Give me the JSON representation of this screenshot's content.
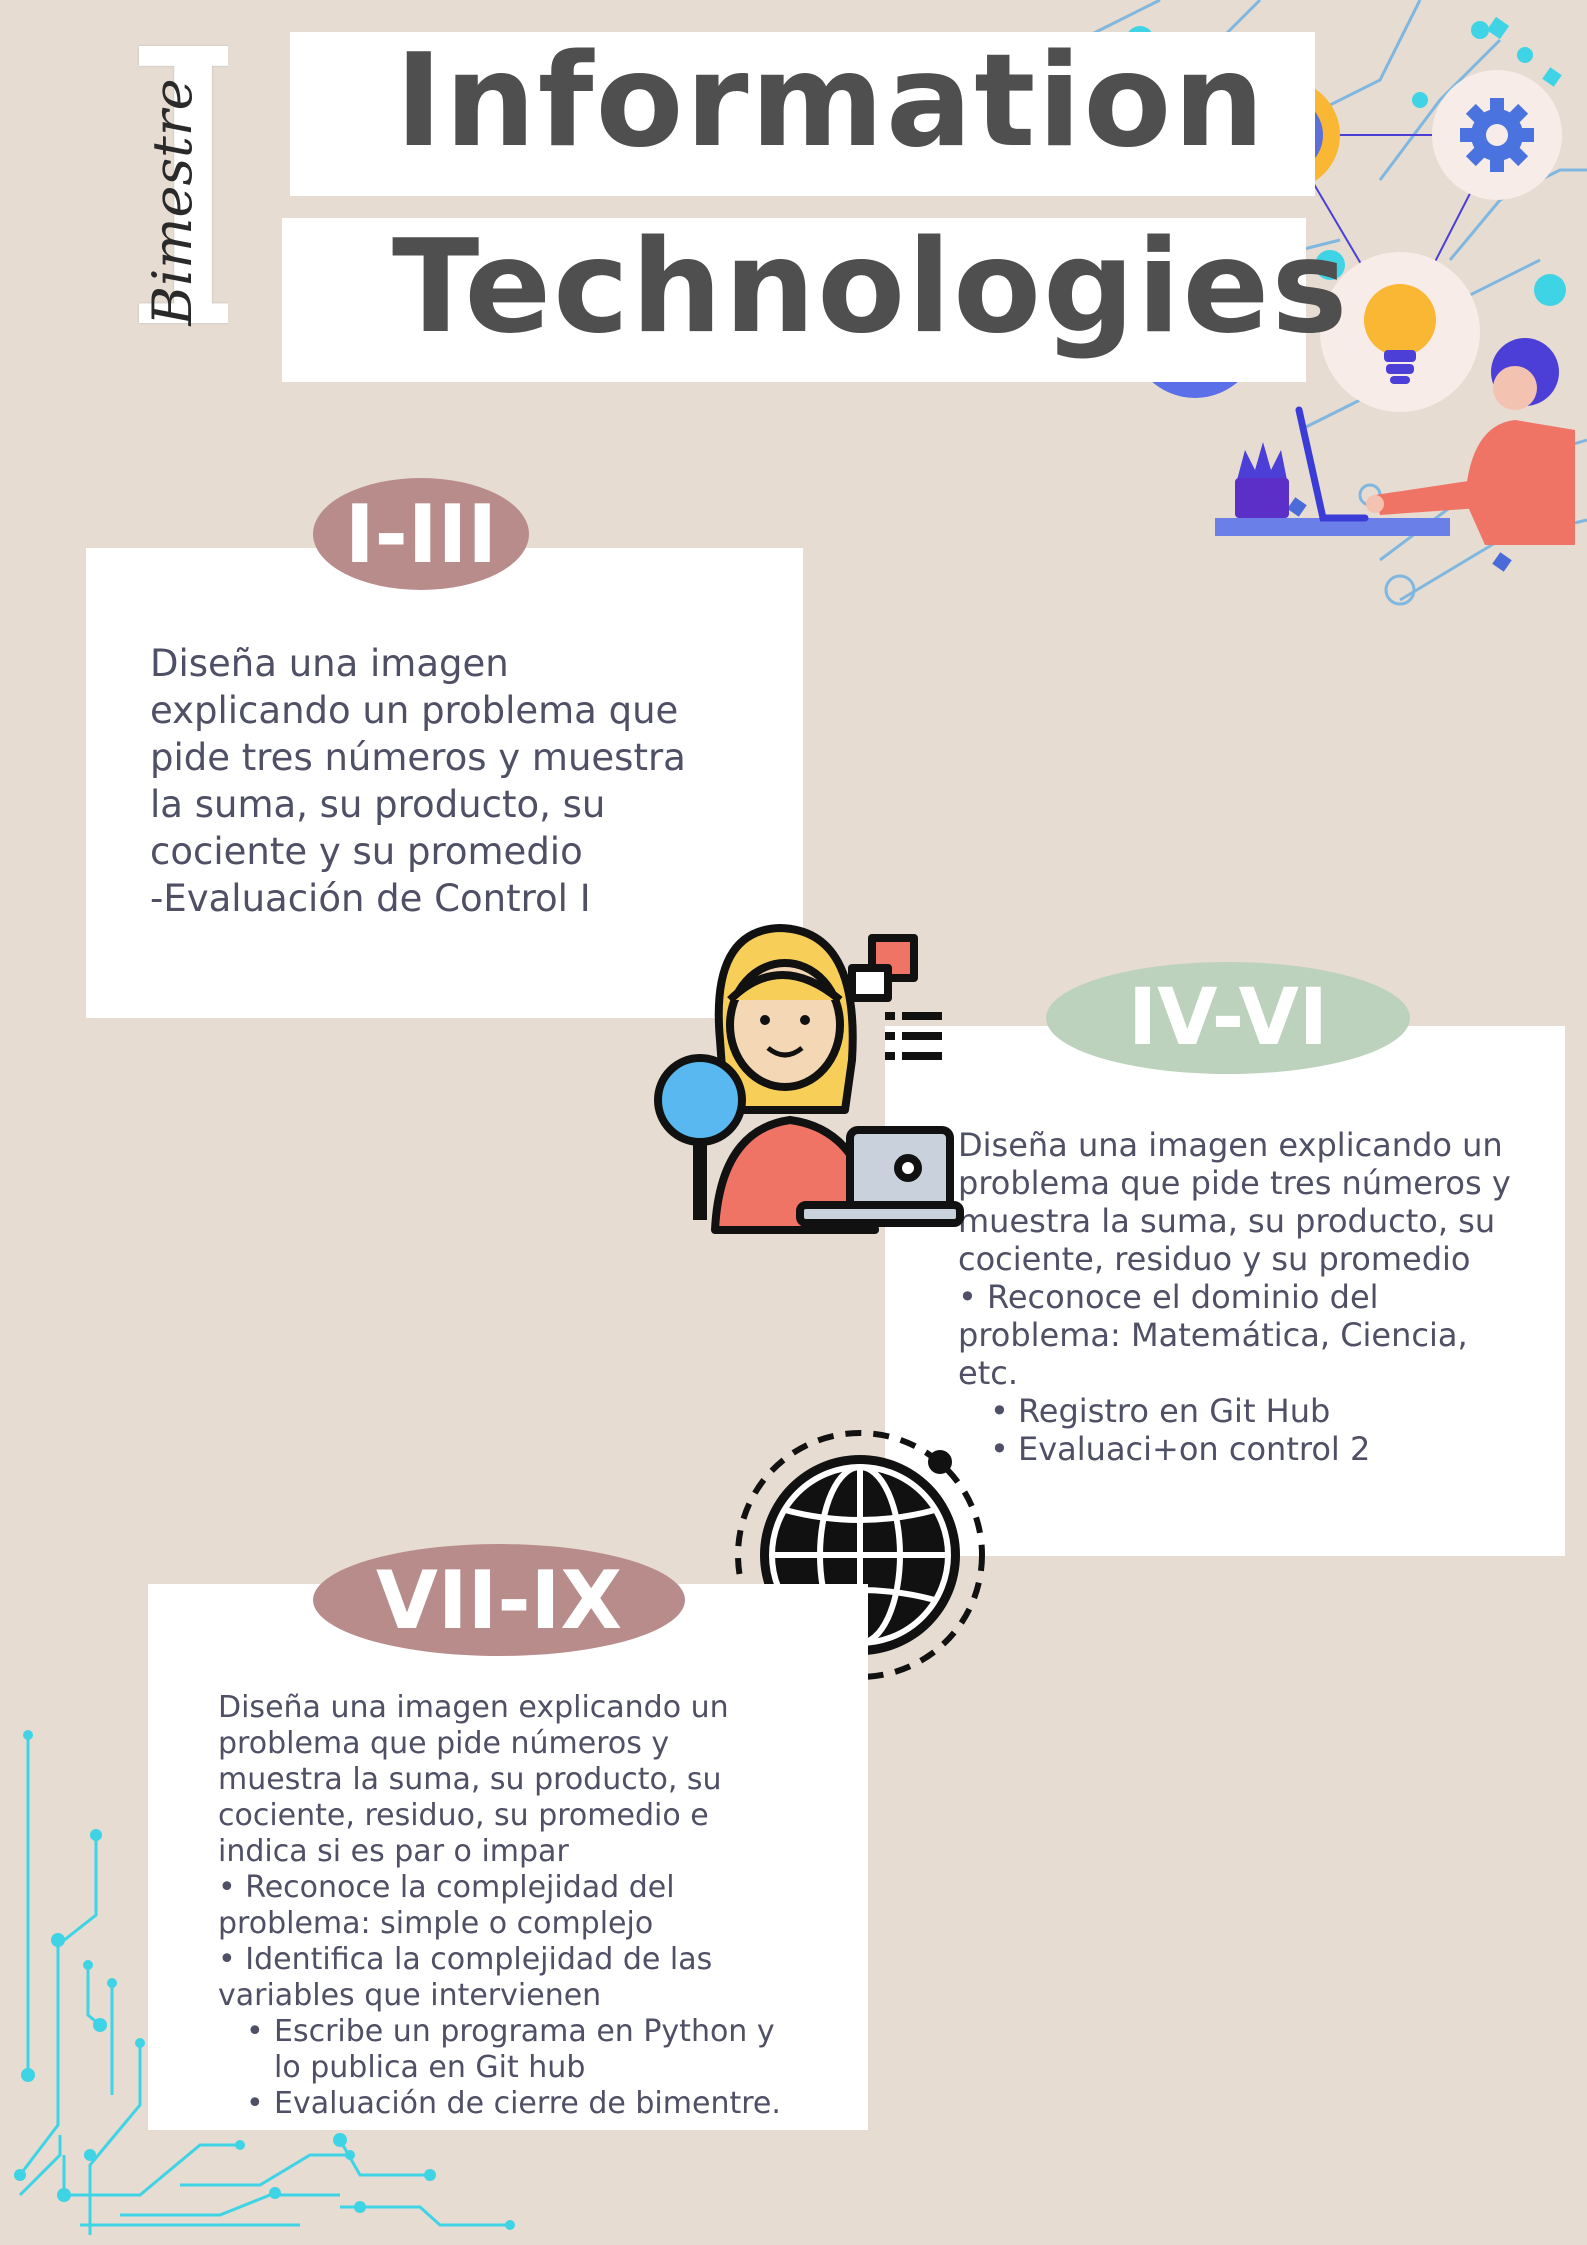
{
  "sidebar_label": {
    "numeral": "I",
    "script": "Bimestre"
  },
  "header": {
    "line1": "Information",
    "line2": "Technologies"
  },
  "sections": [
    {
      "badge": "I-III",
      "badge_color": "#b98c8c",
      "lines": [
        "Diseña una imagen",
        "explicando un problema que",
        "pide tres números y muestra",
        "la suma, su producto, su",
        "cociente y su promedio",
        "-Evaluación de Control I"
      ]
    },
    {
      "badge": "IV-VI",
      "badge_color": "#bcd2bc",
      "lines": [
        "Diseña una imagen explicando un",
        "problema que pide tres números y",
        "muestra la suma, su producto, su",
        "cociente, residuo y su promedio",
        "• Reconoce el dominio del",
        "problema: Matemática, Ciencia,",
        "etc."
      ],
      "bullets": [
        "Registro en Git Hub",
        "Evaluaci+on control 2"
      ]
    },
    {
      "badge": "VII-IX",
      "badge_color": "#b98c8c",
      "lines": [
        "Diseña una imagen explicando un",
        "problema que pide números y",
        "muestra la suma, su producto, su",
        "cociente, residuo, su promedio e",
        "indica si es par o impar",
        "• Reconoce la complejidad del",
        "problema: simple o complejo",
        "• Identifica la complejidad de las",
        "variables que intervienen"
      ],
      "bullets": [
        "Escribe un programa en Python y lo publica en Git hub",
        "Evaluación de cierre de bimentre."
      ]
    }
  ],
  "icons": [
    "clock-icon",
    "gear-icon",
    "document-icon",
    "lightbulb-icon",
    "person-at-laptop-icon",
    "plant-icon",
    "researcher-icon",
    "globe-icon",
    "circuit-lines-icon"
  ],
  "colors": {
    "background": "#e6dcd2",
    "card": "#ffffff",
    "title": "#4f4f4f",
    "body_text": "#4f4f66",
    "circuit": "#3fd3e6"
  }
}
